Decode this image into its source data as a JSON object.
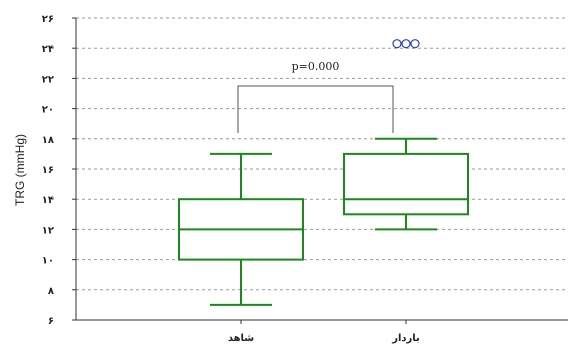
{
  "chart_data": {
    "type": "box",
    "ylabel": "TRG (mmHg)",
    "ytick_labels": [
      "۶",
      "۸",
      "۱۰",
      "۱۲",
      "۱۴",
      "۱۶",
      "۱۸",
      "۲۰",
      "۲۲",
      "۲۴",
      "۲۶"
    ],
    "yticks": [
      6,
      8,
      10,
      12,
      14,
      16,
      18,
      20,
      22,
      24,
      26
    ],
    "ylim": [
      6,
      26
    ],
    "grid": true,
    "categories": [
      "شاهد",
      "باردار"
    ],
    "boxes": [
      {
        "category": "شاهد",
        "whisker_low": 7.0,
        "q1": 10.0,
        "median": 12.0,
        "q3": 14.0,
        "whisker_high": 17.0,
        "outliers": []
      },
      {
        "category": "باردار",
        "whisker_low": 12.0,
        "q1": 13.0,
        "median": 14.0,
        "q3": 17.0,
        "whisker_high": 18.0,
        "outliers": [
          24.3,
          24.3,
          24.3
        ]
      }
    ],
    "annotation": {
      "text": "p=0.000",
      "bracket_between": [
        "شاهد",
        "باردار"
      ]
    },
    "colors": {
      "box": "#1a8a1a",
      "outlier": "#2b3fb5",
      "grid": "#9a9a9a",
      "bracket": "#555555"
    }
  }
}
